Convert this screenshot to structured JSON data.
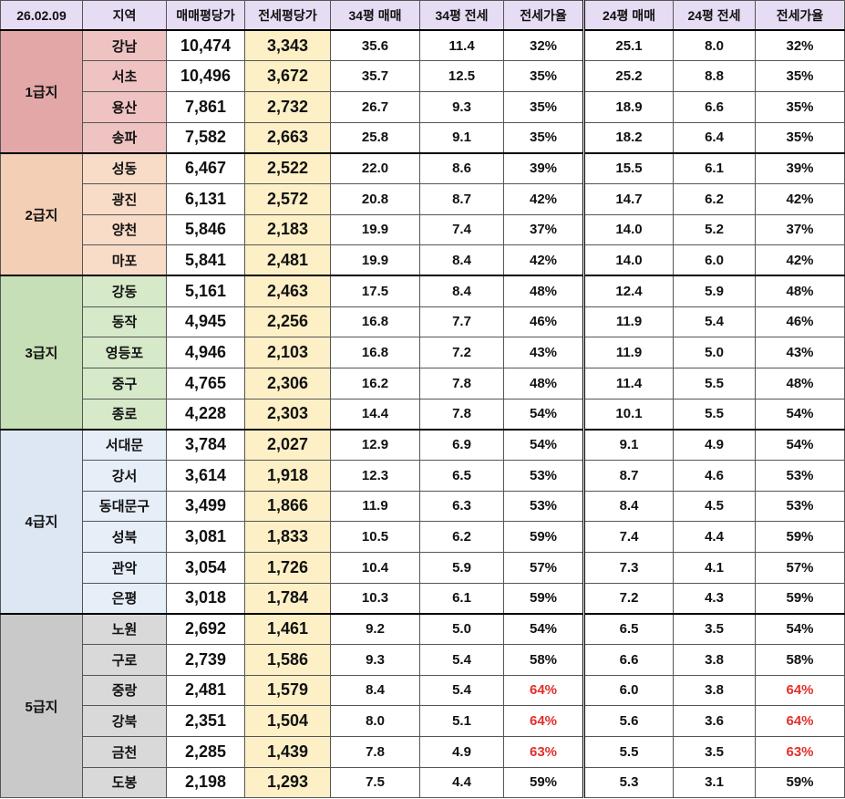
{
  "header": [
    "26.02.09",
    "지역",
    "매매평당가",
    "전세평당가",
    "34평 매매",
    "34평 전세",
    "전세가율",
    "24평 매매",
    "24평 전세",
    "전세가율"
  ],
  "groups": [
    {
      "tier": "1급지",
      "rows": [
        [
          "강남",
          "10,474",
          "3,343",
          "35.6",
          "11.4",
          "32%",
          "25.1",
          "8.0",
          "32%"
        ],
        [
          "서초",
          "10,496",
          "3,672",
          "35.7",
          "12.5",
          "35%",
          "25.2",
          "8.8",
          "35%"
        ],
        [
          "용산",
          "7,861",
          "2,732",
          "26.7",
          "9.3",
          "35%",
          "18.9",
          "6.6",
          "35%"
        ],
        [
          "송파",
          "7,582",
          "2,663",
          "25.8",
          "9.1",
          "35%",
          "18.2",
          "6.4",
          "35%"
        ]
      ]
    },
    {
      "tier": "2급지",
      "rows": [
        [
          "성동",
          "6,467",
          "2,522",
          "22.0",
          "8.6",
          "39%",
          "15.5",
          "6.1",
          "39%"
        ],
        [
          "광진",
          "6,131",
          "2,572",
          "20.8",
          "8.7",
          "42%",
          "14.7",
          "6.2",
          "42%"
        ],
        [
          "양천",
          "5,846",
          "2,183",
          "19.9",
          "7.4",
          "37%",
          "14.0",
          "5.2",
          "37%"
        ],
        [
          "마포",
          "5,841",
          "2,481",
          "19.9",
          "8.4",
          "42%",
          "14.0",
          "6.0",
          "42%"
        ]
      ]
    },
    {
      "tier": "3급지",
      "rows": [
        [
          "강동",
          "5,161",
          "2,463",
          "17.5",
          "8.4",
          "48%",
          "12.4",
          "5.9",
          "48%"
        ],
        [
          "동작",
          "4,945",
          "2,256",
          "16.8",
          "7.7",
          "46%",
          "11.9",
          "5.4",
          "46%"
        ],
        [
          "영등포",
          "4,946",
          "2,103",
          "16.8",
          "7.2",
          "43%",
          "11.9",
          "5.0",
          "43%"
        ],
        [
          "중구",
          "4,765",
          "2,306",
          "16.2",
          "7.8",
          "48%",
          "11.4",
          "5.5",
          "48%"
        ],
        [
          "종로",
          "4,228",
          "2,303",
          "14.4",
          "7.8",
          "54%",
          "10.1",
          "5.5",
          "54%"
        ]
      ]
    },
    {
      "tier": "4급지",
      "rows": [
        [
          "서대문",
          "3,784",
          "2,027",
          "12.9",
          "6.9",
          "54%",
          "9.1",
          "4.9",
          "54%"
        ],
        [
          "강서",
          "3,614",
          "1,918",
          "12.3",
          "6.5",
          "53%",
          "8.7",
          "4.6",
          "53%"
        ],
        [
          "동대문구",
          "3,499",
          "1,866",
          "11.9",
          "6.3",
          "53%",
          "8.4",
          "4.5",
          "53%"
        ],
        [
          "성북",
          "3,081",
          "1,833",
          "10.5",
          "6.2",
          "59%",
          "7.4",
          "4.4",
          "59%"
        ],
        [
          "관악",
          "3,054",
          "1,726",
          "10.4",
          "5.9",
          "57%",
          "7.3",
          "4.1",
          "57%"
        ],
        [
          "은평",
          "3,018",
          "1,784",
          "10.3",
          "6.1",
          "59%",
          "7.2",
          "4.3",
          "59%"
        ]
      ]
    },
    {
      "tier": "5급지",
      "rows": [
        [
          "노원",
          "2,692",
          "1,461",
          "9.2",
          "5.0",
          "54%",
          "6.5",
          "3.5",
          "54%"
        ],
        [
          "구로",
          "2,739",
          "1,586",
          "9.3",
          "5.4",
          "58%",
          "6.6",
          "3.8",
          "58%"
        ],
        [
          "중랑",
          "2,481",
          "1,579",
          "8.4",
          "5.4",
          "64%",
          "6.0",
          "3.8",
          "64%"
        ],
        [
          "강북",
          "2,351",
          "1,504",
          "8.0",
          "5.1",
          "64%",
          "5.6",
          "3.6",
          "64%"
        ],
        [
          "금천",
          "2,285",
          "1,439",
          "7.8",
          "4.9",
          "63%",
          "5.5",
          "3.5",
          "63%"
        ],
        [
          "도봉",
          "2,198",
          "1,293",
          "7.5",
          "4.4",
          "59%",
          "5.3",
          "3.1",
          "59%"
        ]
      ]
    }
  ]
}
